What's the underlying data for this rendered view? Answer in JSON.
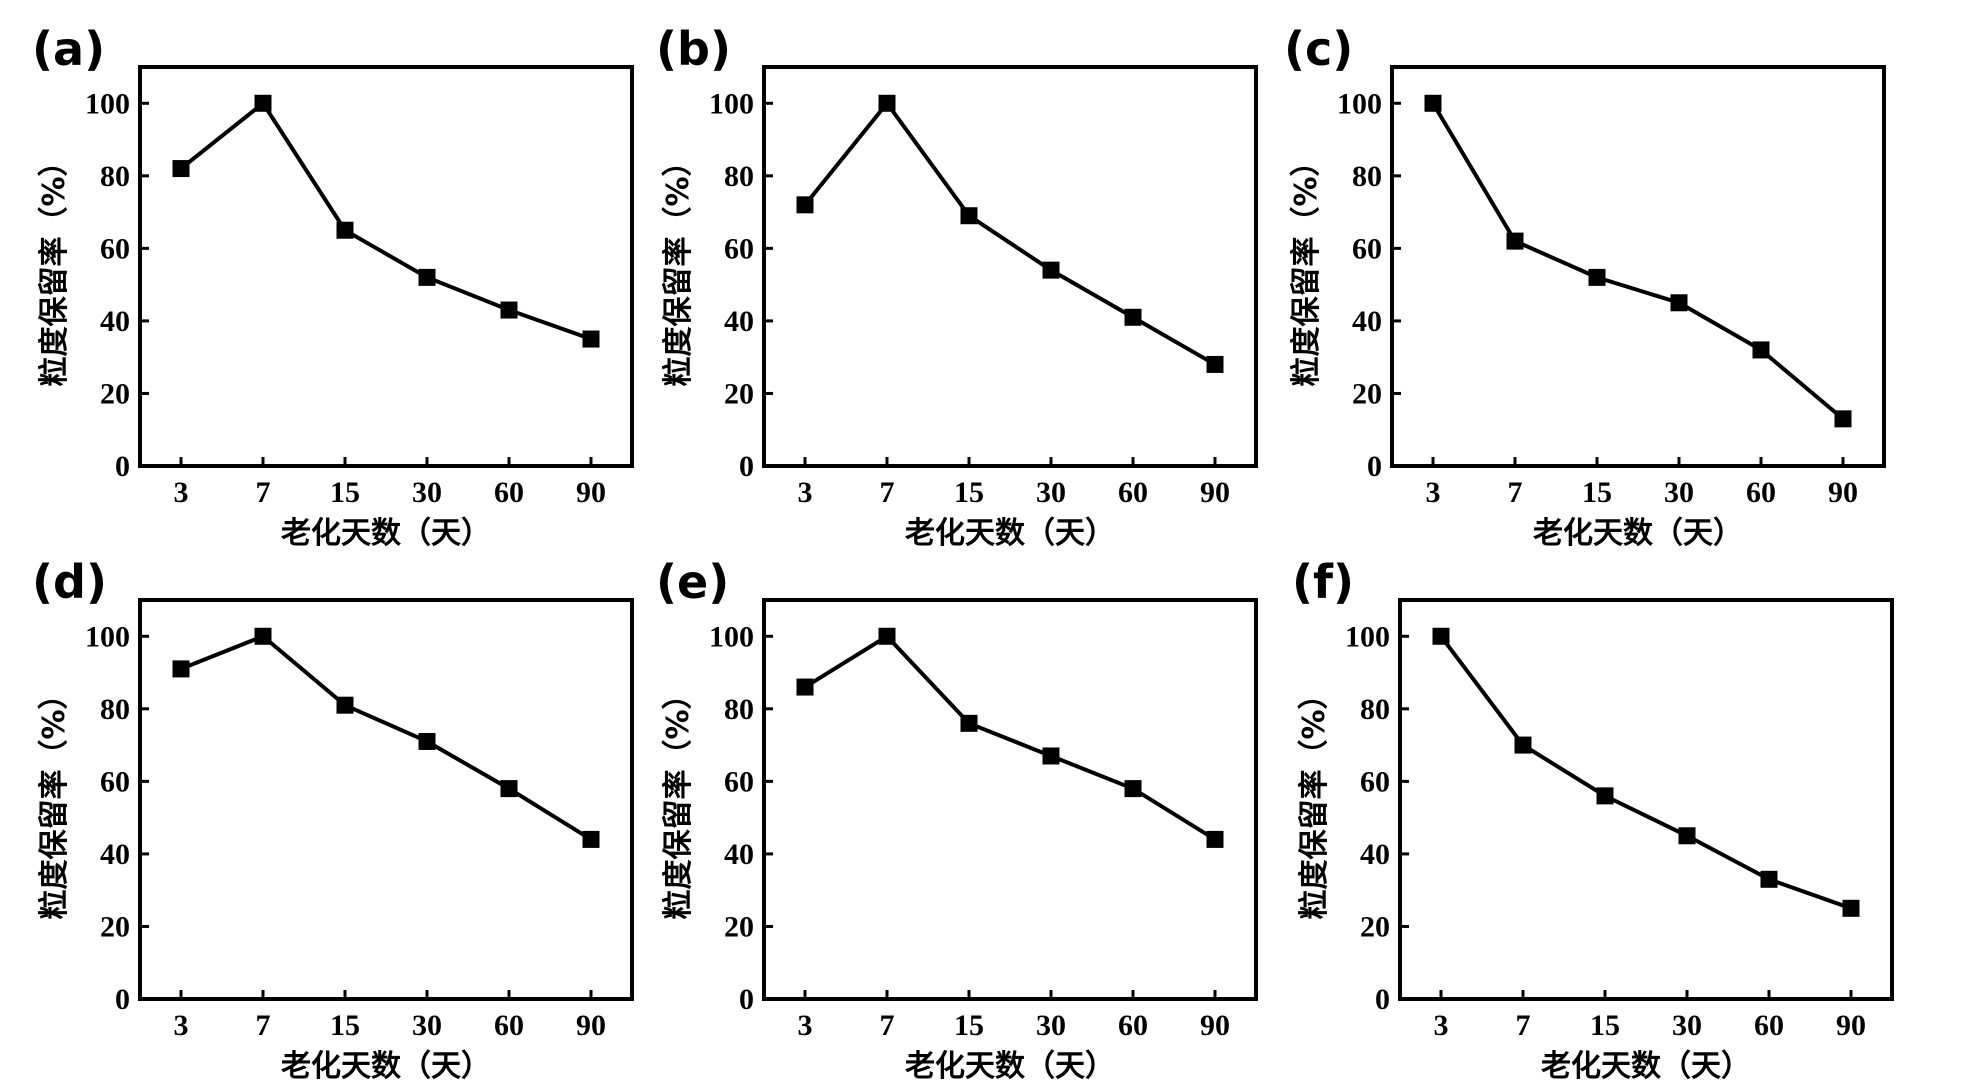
{
  "chart_data": [
    {
      "panel": "(a)",
      "type": "line",
      "categories": [
        "3",
        "7",
        "15",
        "30",
        "60",
        "90"
      ],
      "series": [
        {
          "values": [
            82,
            100,
            65,
            52,
            43,
            35
          ],
          "marker": "square",
          "color": "#000000"
        }
      ],
      "xlabel": "老化天数（天）",
      "ylabel": "粒度保留率（%）",
      "ylim": [
        0,
        110
      ],
      "yticks": [
        0,
        20,
        40,
        60,
        80,
        100
      ],
      "grid": false,
      "legend": "none"
    },
    {
      "panel": "(b)",
      "type": "line",
      "categories": [
        "3",
        "7",
        "15",
        "30",
        "60",
        "90"
      ],
      "series": [
        {
          "values": [
            72,
            100,
            69,
            54,
            41,
            28
          ],
          "marker": "square",
          "color": "#000000"
        }
      ],
      "xlabel": "老化天数（天）",
      "ylabel": "粒度保留率（%）",
      "ylim": [
        0,
        110
      ],
      "yticks": [
        0,
        20,
        40,
        60,
        80,
        100
      ],
      "grid": false,
      "legend": "none"
    },
    {
      "panel": "(c)",
      "type": "line",
      "categories": [
        "3",
        "7",
        "15",
        "30",
        "60",
        "90"
      ],
      "series": [
        {
          "values": [
            100,
            62,
            52,
            45,
            32,
            13
          ],
          "marker": "square",
          "color": "#000000"
        }
      ],
      "xlabel": "老化天数（天）",
      "ylabel": "粒度保留率（%）",
      "ylim": [
        0,
        110
      ],
      "yticks": [
        0,
        20,
        40,
        60,
        80,
        100
      ],
      "grid": false,
      "legend": "none"
    },
    {
      "panel": "(d)",
      "type": "line",
      "categories": [
        "3",
        "7",
        "15",
        "30",
        "60",
        "90"
      ],
      "series": [
        {
          "values": [
            91,
            100,
            81,
            71,
            58,
            44
          ],
          "marker": "square",
          "color": "#000000"
        }
      ],
      "xlabel": "老化天数（天）",
      "ylabel": "粒度保留率（%）",
      "ylim": [
        0,
        110
      ],
      "yticks": [
        0,
        20,
        40,
        60,
        80,
        100
      ],
      "grid": false,
      "legend": "none"
    },
    {
      "panel": "(e)",
      "type": "line",
      "categories": [
        "3",
        "7",
        "15",
        "30",
        "60",
        "90"
      ],
      "series": [
        {
          "values": [
            86,
            100,
            76,
            67,
            58,
            44
          ],
          "marker": "square",
          "color": "#000000"
        }
      ],
      "xlabel": "老化天数（天）",
      "ylabel": "粒度保留率（%）",
      "ylim": [
        0,
        110
      ],
      "yticks": [
        0,
        20,
        40,
        60,
        80,
        100
      ],
      "grid": false,
      "legend": "none"
    },
    {
      "panel": "(f)",
      "type": "line",
      "categories": [
        "3",
        "7",
        "15",
        "30",
        "60",
        "90"
      ],
      "series": [
        {
          "values": [
            100,
            70,
            56,
            45,
            33,
            25
          ],
          "marker": "square",
          "color": "#000000"
        }
      ],
      "xlabel": "老化天数（天）",
      "ylabel": "粒度保留率（%）",
      "ylim": [
        0,
        110
      ],
      "yticks": [
        0,
        20,
        40,
        60,
        80,
        100
      ],
      "grid": false,
      "legend": "none"
    }
  ]
}
